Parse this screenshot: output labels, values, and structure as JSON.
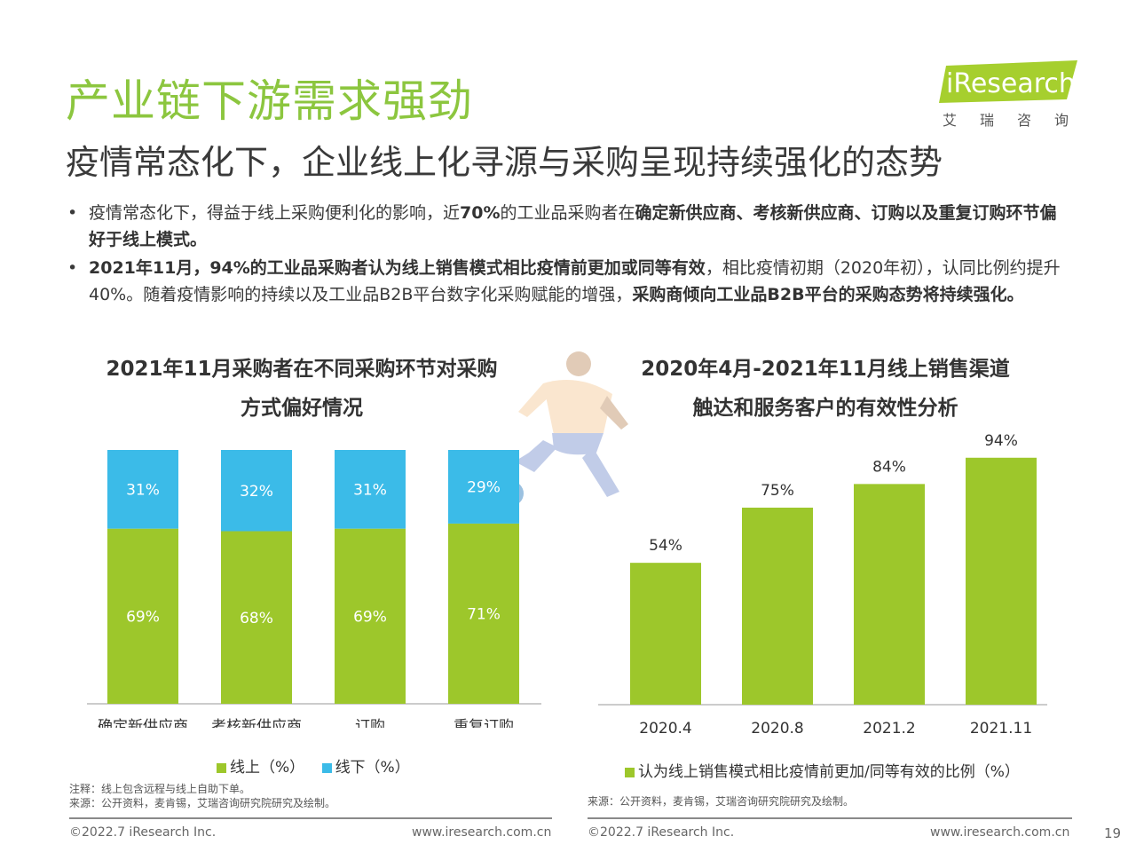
{
  "title": "产业链下游需求强劲",
  "subtitle": "疫情常态化下，企业线上化寻源与采购呈现持续强化的态势",
  "logo": {
    "wordmark": "iResearch",
    "cn": "艾瑞咨询"
  },
  "bullets": [
    {
      "parts": [
        {
          "text": "疫情常态化下，得益于线上采购便利化的影响，近",
          "bold": false
        },
        {
          "text": "70%",
          "bold": true
        },
        {
          "text": "的工业品采购者在",
          "bold": false
        },
        {
          "text": "确定新供应商、考核新供应商、订购以及重复订购环节偏好于线上模式。",
          "bold": true
        }
      ]
    },
    {
      "parts": [
        {
          "text": "2021年11月，94%的工业品采购者认为线上销售模式相比疫情前更加或同等有效",
          "bold": true
        },
        {
          "text": "，相比疫情初期（2020年初），认同比例约提升40%。随着疫情影响的持续以及工业品B2B平台数字化采购赋能的增强，",
          "bold": false
        },
        {
          "text": "采购商倾向工业品B2B平台的采购态势将持续强化。",
          "bold": true
        }
      ]
    }
  ],
  "chart_data": [
    {
      "type": "bar",
      "stacked": true,
      "title": "2021年11月采购者在不同采购环节对采购方式偏好情况",
      "title_lines": [
        "2021年11月采购者在不同采购环节对采购",
        "方式偏好情况"
      ],
      "categories": [
        "确定新供应商",
        "考核新供应商",
        "订购",
        "重复订购"
      ],
      "series": [
        {
          "name": "线上（%）",
          "values": [
            69,
            68,
            69,
            71
          ],
          "labels": [
            "69%",
            "68%",
            "69%",
            "71%"
          ],
          "color": "#9dc72b"
        },
        {
          "name": "线下（%）",
          "values": [
            31,
            32,
            31,
            29
          ],
          "labels": [
            "31%",
            "32%",
            "31%",
            "29%"
          ],
          "color": "#3bbbe8"
        }
      ],
      "ylim": [
        0,
        100
      ],
      "note": "注释：线上包含远程与线上自助下单。",
      "source": "来源：公开资料，麦肯锡，艾瑞咨询研究院研究及绘制。"
    },
    {
      "type": "bar",
      "title": "2020年4月-2021年11月线上销售渠道触达和服务客户的有效性分析",
      "title_lines": [
        "2020年4月-2021年11月线上销售渠道",
        "触达和服务客户的有效性分析"
      ],
      "categories": [
        "2020.4",
        "2020.8",
        "2021.2",
        "2021.11"
      ],
      "series": [
        {
          "name": "认为线上销售模式相比疫情前更加/同等有效的比例（%）",
          "values": [
            54,
            75,
            84,
            94
          ],
          "labels": [
            "54%",
            "75%",
            "84%",
            "94%"
          ],
          "color": "#9dc72b"
        }
      ],
      "ylim": [
        0,
        100
      ],
      "source": "来源：公开资料，麦肯锡，艾瑞咨询研究院研究及绘制。"
    }
  ],
  "footer": {
    "left_copyright": "©2022.7 iResearch Inc.",
    "left_url": "www.iresearch.com.cn",
    "right_copyright": "©2022.7 iResearch Inc.",
    "right_url": "www.iresearch.com.cn",
    "page": "19"
  },
  "colors": {
    "accent": "#8cc63f",
    "online": "#9dc72b",
    "offline": "#3bbbe8"
  }
}
